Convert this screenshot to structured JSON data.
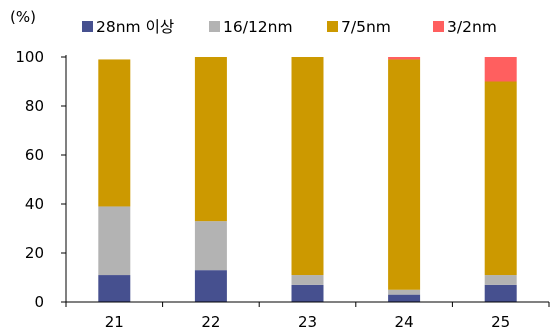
{
  "chart_data": {
    "type": "bar",
    "stacked": true,
    "title": "",
    "xlabel": "",
    "ylabel": "",
    "unit_label": "(%)",
    "categories": [
      "21",
      "22",
      "23",
      "24",
      "25"
    ],
    "ylim": [
      0,
      100
    ],
    "yticks": [
      0,
      20,
      40,
      60,
      80,
      100
    ],
    "grid": false,
    "legend_position": "top",
    "series": [
      {
        "name": "28nm 이상",
        "color": "#46508f",
        "values": [
          11,
          13,
          7,
          3,
          7
        ]
      },
      {
        "name": "16/12nm",
        "color": "#b3b3b3",
        "values": [
          28,
          20,
          4,
          2,
          4
        ]
      },
      {
        "name": "7/5nm",
        "color": "#cc9900",
        "values": [
          60,
          67,
          89,
          94,
          79
        ]
      },
      {
        "name": "3/2nm",
        "color": "#ff5f5f",
        "values": [
          0,
          0,
          0,
          1,
          10
        ]
      }
    ]
  }
}
